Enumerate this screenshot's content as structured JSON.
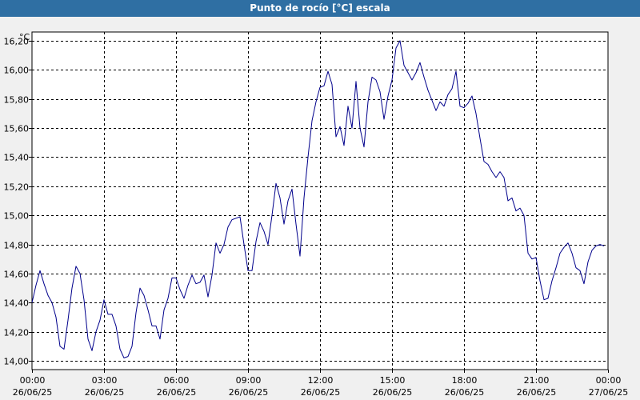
{
  "window": {
    "title": "Punto de rocío [°C] escala"
  },
  "chart_data": {
    "type": "line",
    "title": "Punto de rocío [°C] escala",
    "ylabel": "°C",
    "xlabel": "",
    "ylim": [
      13.94,
      16.26
    ],
    "xlim": [
      "26/06/25 00:00",
      "27/06/25 00:00"
    ],
    "grid": true,
    "y_ticks": [
      "14,00",
      "14,20",
      "14,40",
      "14,60",
      "14,80",
      "15,00",
      "15,20",
      "15,40",
      "15,60",
      "15,80",
      "16,00",
      "16,20"
    ],
    "x_ticks": [
      {
        "time": "00:00",
        "date": "26/06/25"
      },
      {
        "time": "03:00",
        "date": "26/06/25"
      },
      {
        "time": "06:00",
        "date": "26/06/25"
      },
      {
        "time": "09:00",
        "date": "26/06/25"
      },
      {
        "time": "12:00",
        "date": "26/06/25"
      },
      {
        "time": "15:00",
        "date": "26/06/25"
      },
      {
        "time": "18:00",
        "date": "26/06/25"
      },
      {
        "time": "21:00",
        "date": "26/06/25"
      },
      {
        "time": "00:00",
        "date": "27/06/25"
      }
    ],
    "series": [
      {
        "color": "#00008b",
        "x": [
          "26/06/25 00:00",
          "26/06/25 00:10",
          "26/06/25 00:20",
          "26/06/25 00:30",
          "26/06/25 00:40",
          "26/06/25 00:50",
          "26/06/25 01:00",
          "26/06/25 01:10",
          "26/06/25 01:20",
          "26/06/25 01:30",
          "26/06/25 01:40",
          "26/06/25 01:50",
          "26/06/25 02:00",
          "26/06/25 02:10",
          "26/06/25 02:20",
          "26/06/25 02:30",
          "26/06/25 02:40",
          "26/06/25 02:50",
          "26/06/25 03:00",
          "26/06/25 03:10",
          "26/06/25 03:20",
          "26/06/25 03:30",
          "26/06/25 03:40",
          "26/06/25 03:50",
          "26/06/25 04:00",
          "26/06/25 04:10",
          "26/06/25 04:20",
          "26/06/25 04:30",
          "26/06/25 04:40",
          "26/06/25 04:50",
          "26/06/25 05:00",
          "26/06/25 05:10",
          "26/06/25 05:20",
          "26/06/25 05:30",
          "26/06/25 05:40",
          "26/06/25 05:50",
          "26/06/25 06:00",
          "26/06/25 06:10",
          "26/06/25 06:20",
          "26/06/25 06:30",
          "26/06/25 06:40",
          "26/06/25 06:50",
          "26/06/25 07:00",
          "26/06/25 07:10",
          "26/06/25 07:20",
          "26/06/25 07:30",
          "26/06/25 07:40",
          "26/06/25 07:50",
          "26/06/25 08:00",
          "26/06/25 08:10",
          "26/06/25 08:20",
          "26/06/25 08:30",
          "26/06/25 08:40",
          "26/06/25 08:50",
          "26/06/25 09:00",
          "26/06/25 09:10",
          "26/06/25 09:20",
          "26/06/25 09:30",
          "26/06/25 09:40",
          "26/06/25 09:50",
          "26/06/25 10:00",
          "26/06/25 10:10",
          "26/06/25 10:20",
          "26/06/25 10:30",
          "26/06/25 10:40",
          "26/06/25 10:50",
          "26/06/25 11:00",
          "26/06/25 11:10",
          "26/06/25 11:20",
          "26/06/25 11:30",
          "26/06/25 11:40",
          "26/06/25 11:50",
          "26/06/25 12:00",
          "26/06/25 12:10",
          "26/06/25 12:20",
          "26/06/25 12:30",
          "26/06/25 12:40",
          "26/06/25 12:50",
          "26/06/25 13:00",
          "26/06/25 13:10",
          "26/06/25 13:20",
          "26/06/25 13:30",
          "26/06/25 13:40",
          "26/06/25 13:50",
          "26/06/25 14:00",
          "26/06/25 14:10",
          "26/06/25 14:20",
          "26/06/25 14:30",
          "26/06/25 14:40",
          "26/06/25 14:50",
          "26/06/25 15:00",
          "26/06/25 15:10",
          "26/06/25 15:20",
          "26/06/25 15:30",
          "26/06/25 15:40",
          "26/06/25 15:50",
          "26/06/25 16:00",
          "26/06/25 16:10",
          "26/06/25 16:20",
          "26/06/25 16:30",
          "26/06/25 16:40",
          "26/06/25 16:50",
          "26/06/25 17:00",
          "26/06/25 17:10",
          "26/06/25 17:20",
          "26/06/25 17:30",
          "26/06/25 17:40",
          "26/06/25 17:50",
          "26/06/25 18:00",
          "26/06/25 18:10",
          "26/06/25 18:20",
          "26/06/25 18:30",
          "26/06/25 18:40",
          "26/06/25 18:50",
          "26/06/25 19:00",
          "26/06/25 19:10",
          "26/06/25 19:20",
          "26/06/25 19:30",
          "26/06/25 19:40",
          "26/06/25 19:50",
          "26/06/25 20:00",
          "26/06/25 20:10",
          "26/06/25 20:20",
          "26/06/25 20:30",
          "26/06/25 20:40",
          "26/06/25 20:50",
          "26/06/25 21:00",
          "26/06/25 21:10",
          "26/06/25 21:20",
          "26/06/25 21:30",
          "26/06/25 21:40",
          "26/06/25 21:50",
          "26/06/25 22:00",
          "26/06/25 22:10",
          "26/06/25 22:20",
          "26/06/25 22:30",
          "26/06/25 22:40",
          "26/06/25 22:50",
          "26/06/25 23:00",
          "26/06/25 23:10",
          "26/06/25 23:20",
          "26/06/25 23:30",
          "26/06/25 23:40",
          "26/06/25 23:50"
        ],
        "values": [
          14.4,
          14.52,
          14.62,
          14.53,
          14.45,
          14.4,
          14.3,
          14.1,
          14.08,
          14.28,
          14.5,
          14.65,
          14.6,
          14.42,
          14.15,
          14.07,
          14.2,
          14.28,
          14.42,
          14.32,
          14.32,
          14.24,
          14.08,
          14.02,
          14.03,
          14.1,
          14.33,
          14.5,
          14.45,
          14.35,
          14.24,
          14.24,
          14.15,
          14.35,
          14.43,
          14.57,
          14.57,
          14.49,
          14.43,
          14.52,
          14.59,
          14.53,
          14.54,
          14.59,
          14.44,
          14.59,
          14.81,
          14.74,
          14.8,
          14.92,
          14.97,
          14.98,
          14.99,
          14.8,
          14.62,
          14.62,
          14.82,
          14.95,
          14.89,
          14.8,
          15.0,
          15.22,
          15.12,
          14.94,
          15.1,
          15.18,
          14.94,
          14.72,
          15.12,
          15.4,
          15.65,
          15.78,
          15.88,
          15.89,
          15.99,
          15.9,
          15.54,
          15.61,
          15.48,
          15.75,
          15.6,
          15.92,
          15.6,
          15.47,
          15.78,
          15.95,
          15.93,
          15.85,
          15.66,
          15.82,
          15.93,
          16.15,
          16.2,
          16.03,
          15.98,
          15.93,
          15.98,
          16.05,
          15.95,
          15.86,
          15.79,
          15.72,
          15.78,
          15.75,
          15.83,
          15.87,
          15.99,
          15.75,
          15.74,
          15.77,
          15.82,
          15.7,
          15.53,
          15.37,
          15.35,
          15.3,
          15.26,
          15.3,
          15.26,
          15.1,
          15.12,
          15.03,
          15.05,
          15.0,
          14.74,
          14.7,
          14.71,
          14.55,
          14.42,
          14.43,
          14.55,
          14.64,
          14.74,
          14.78,
          14.81,
          14.74,
          14.64,
          14.62,
          14.53,
          14.68,
          14.76,
          14.79,
          14.8,
          14.79
        ]
      }
    ]
  }
}
